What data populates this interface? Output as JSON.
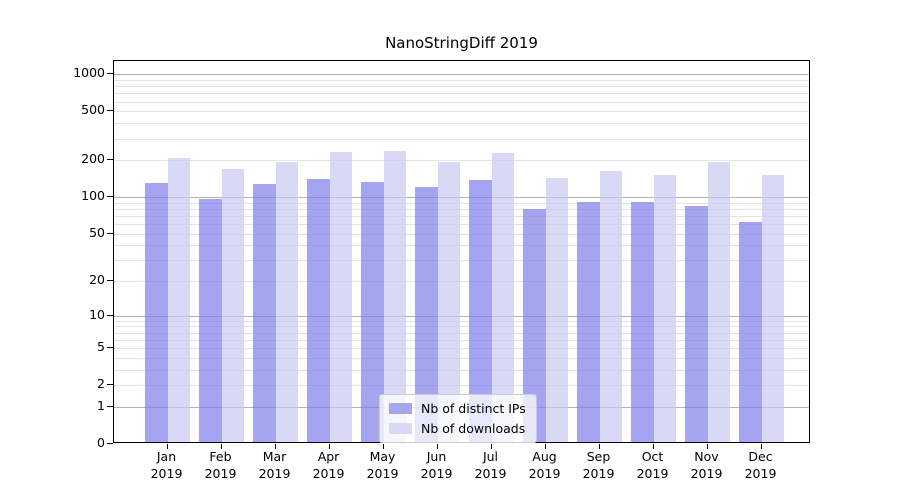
{
  "title": "NanoStringDiff 2019",
  "chart_data": {
    "type": "bar",
    "title": "NanoStringDiff 2019",
    "categories": [
      "Jan",
      "Feb",
      "Mar",
      "Apr",
      "May",
      "Jun",
      "Jul",
      "Aug",
      "Sep",
      "Oct",
      "Nov",
      "Dec"
    ],
    "category_year": "2019",
    "series": [
      {
        "name": "Nb of distinct IPs",
        "color": "#a5a5f0",
        "fill_rgba": "rgba(126,126,234,0.7)",
        "values": [
          125,
          93,
          122,
          135,
          128,
          116,
          132,
          77,
          88,
          88,
          81,
          60
        ]
      },
      {
        "name": "Nb of downloads",
        "color": "#d9d9f6",
        "fill_rgba": "rgba(201,201,242,0.7)",
        "values": [
          202,
          164,
          185,
          226,
          229,
          186,
          219,
          139,
          158,
          145,
          186,
          146
        ]
      }
    ],
    "y_ticks": [
      0,
      1,
      2,
      5,
      10,
      20,
      50,
      100,
      200,
      500,
      1000
    ],
    "y_scale": "log1p",
    "ylim": [
      0,
      1280
    ],
    "xlabel": "",
    "ylabel": "",
    "grid": true,
    "legend_position": "bottom-center",
    "colors": {
      "grid_decade": "#b3b3b3",
      "grid_light": "#e3e3e3",
      "axis": "#000000",
      "background": "#ffffff"
    }
  }
}
